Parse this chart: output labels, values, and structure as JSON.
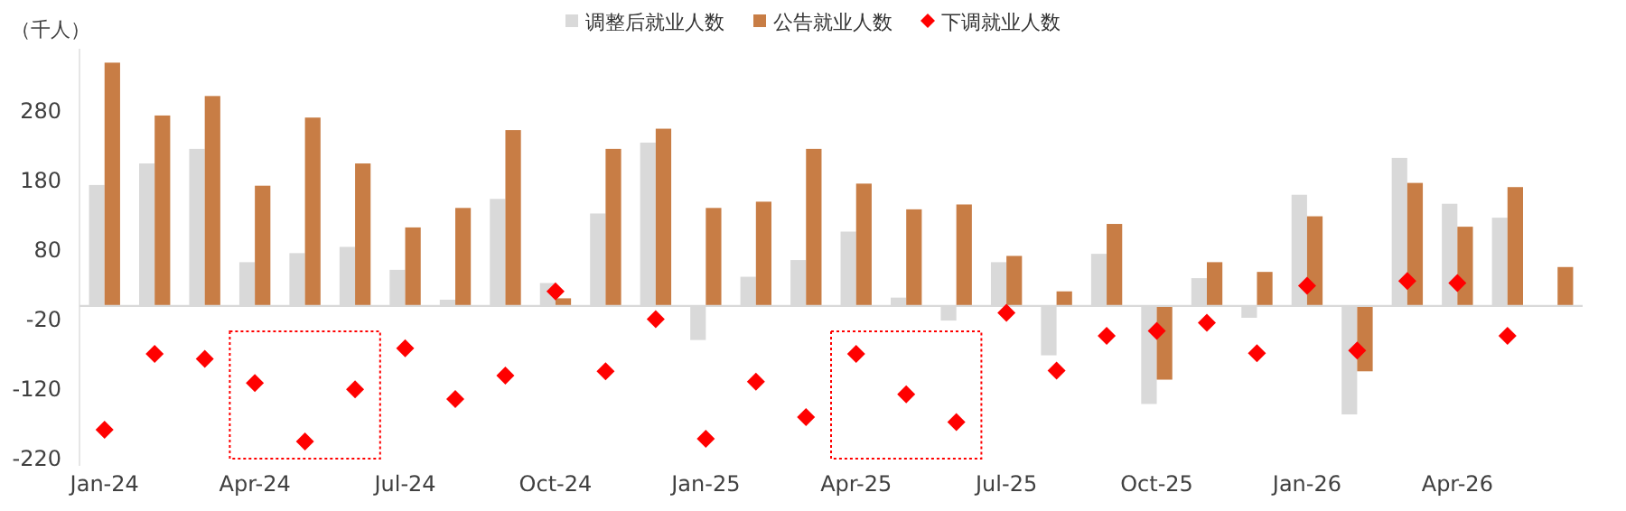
{
  "chart_data": {
    "type": "bar",
    "ylabel": "（千人）",
    "categories": [
      "Jan-24",
      null,
      null,
      "Apr-24",
      null,
      null,
      "Jul-24",
      null,
      null,
      "Oct-24",
      null,
      null,
      "Jan-25",
      null,
      null,
      "Apr-25",
      null,
      null,
      "Jul-25",
      null,
      null,
      "Oct-25",
      null,
      null,
      "Jan-26",
      null,
      null,
      "Apr-26",
      null,
      null
    ],
    "series": [
      {
        "name": "调整后就业人数",
        "color": "#d9d9d9",
        "values": [
          174,
          205,
          226,
          63,
          76,
          85,
          52,
          9,
          154,
          33,
          133,
          235,
          -49,
          42,
          66,
          107,
          12,
          -21,
          63,
          -71,
          75,
          -141,
          40,
          -17,
          160,
          -156,
          213,
          147,
          127,
          null
        ]
      },
      {
        "name": "公告就业人数",
        "color": "#c87d45",
        "values": [
          350,
          274,
          302,
          173,
          271,
          205,
          113,
          141,
          253,
          11,
          226,
          255,
          141,
          150,
          226,
          176,
          139,
          146,
          72,
          21,
          118,
          -106,
          63,
          49,
          129,
          -94,
          177,
          114,
          171,
          56
        ]
      },
      {
        "name": "下调就业人数",
        "type": "scatter",
        "marker": "diamond",
        "color": "#ff0000",
        "values": [
          -178,
          -69,
          -76,
          -111,
          -195,
          -120,
          -61,
          -134,
          -100,
          21,
          -94,
          -19,
          -191,
          -109,
          -160,
          -69,
          -127,
          -167,
          -10,
          -93,
          -43,
          -36,
          -24,
          -68,
          29,
          -64,
          36,
          33,
          -43,
          null
        ]
      }
    ],
    "ylim": [
      -230,
      370
    ],
    "yticks": [
      -220,
      -120,
      -20,
      80,
      180,
      280
    ],
    "grid": false,
    "legend": "top"
  }
}
